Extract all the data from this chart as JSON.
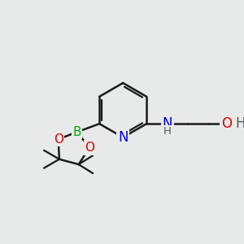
{
  "background_color": "#e8eaea",
  "bond_color": "#1a1a1a",
  "bond_width": 1.8,
  "atom_colors": {
    "N": "#0000dd",
    "O": "#dd0000",
    "B": "#00aa00",
    "H": "#555555",
    "C": "#1a1a1a"
  },
  "font_size": 11,
  "font_size_small": 9.5
}
